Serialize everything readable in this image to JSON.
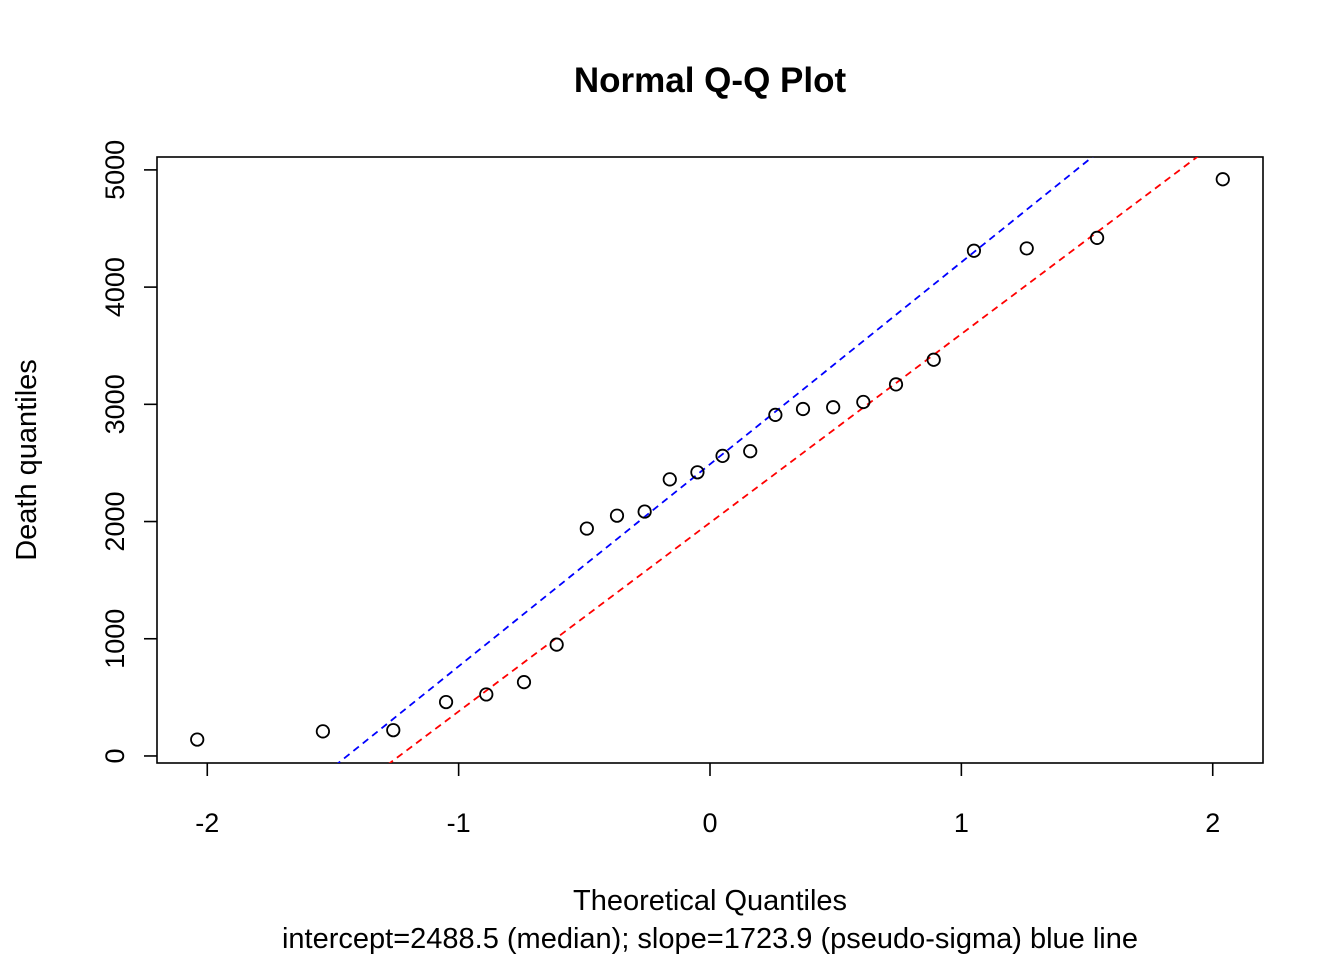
{
  "chart_data": {
    "type": "scatter",
    "title": "Normal Q-Q Plot",
    "xlabel": "Theoretical Quantiles",
    "xlabel_sub": "intercept=2488.5 (median); slope=1723.9 (pseudo-sigma) blue line",
    "ylabel": "Death quantiles",
    "xlim": [
      -2.2,
      2.2
    ],
    "ylim": [
      -60,
      5110
    ],
    "x_ticks": [
      -2,
      -1,
      0,
      1,
      2
    ],
    "x_tick_labels": [
      "-2",
      "-1",
      "0",
      "1",
      "2"
    ],
    "y_ticks": [
      0,
      1000,
      2000,
      3000,
      4000,
      5000
    ],
    "y_tick_labels": [
      "0",
      "1000",
      "2000",
      "3000",
      "4000",
      "5000"
    ],
    "grid": false,
    "series": [
      {
        "marker": "open-circle",
        "color": "#000000",
        "points": [
          {
            "x": -2.04,
            "y": 140
          },
          {
            "x": -1.54,
            "y": 210
          },
          {
            "x": -1.26,
            "y": 220
          },
          {
            "x": -1.05,
            "y": 460
          },
          {
            "x": -0.89,
            "y": 525
          },
          {
            "x": -0.74,
            "y": 630
          },
          {
            "x": -0.61,
            "y": 950
          },
          {
            "x": -0.49,
            "y": 1940
          },
          {
            "x": -0.37,
            "y": 2050
          },
          {
            "x": -0.26,
            "y": 2085
          },
          {
            "x": -0.16,
            "y": 2360
          },
          {
            "x": -0.05,
            "y": 2420
          },
          {
            "x": 0.05,
            "y": 2560
          },
          {
            "x": 0.16,
            "y": 2600
          },
          {
            "x": 0.26,
            "y": 2910
          },
          {
            "x": 0.37,
            "y": 2960
          },
          {
            "x": 0.49,
            "y": 2975
          },
          {
            "x": 0.61,
            "y": 3020
          },
          {
            "x": 0.74,
            "y": 3170
          },
          {
            "x": 0.89,
            "y": 3380
          },
          {
            "x": 1.05,
            "y": 4310
          },
          {
            "x": 1.26,
            "y": 4330
          },
          {
            "x": 1.54,
            "y": 4420
          },
          {
            "x": 2.04,
            "y": 4920
          }
        ]
      }
    ],
    "reference_lines": [
      {
        "color": "#0000ff",
        "style": "dashed",
        "intercept": 2488.5,
        "slope": 1723.9
      },
      {
        "color": "#ff0000",
        "style": "dashed",
        "intercept": 1990,
        "slope": 1610
      }
    ]
  }
}
